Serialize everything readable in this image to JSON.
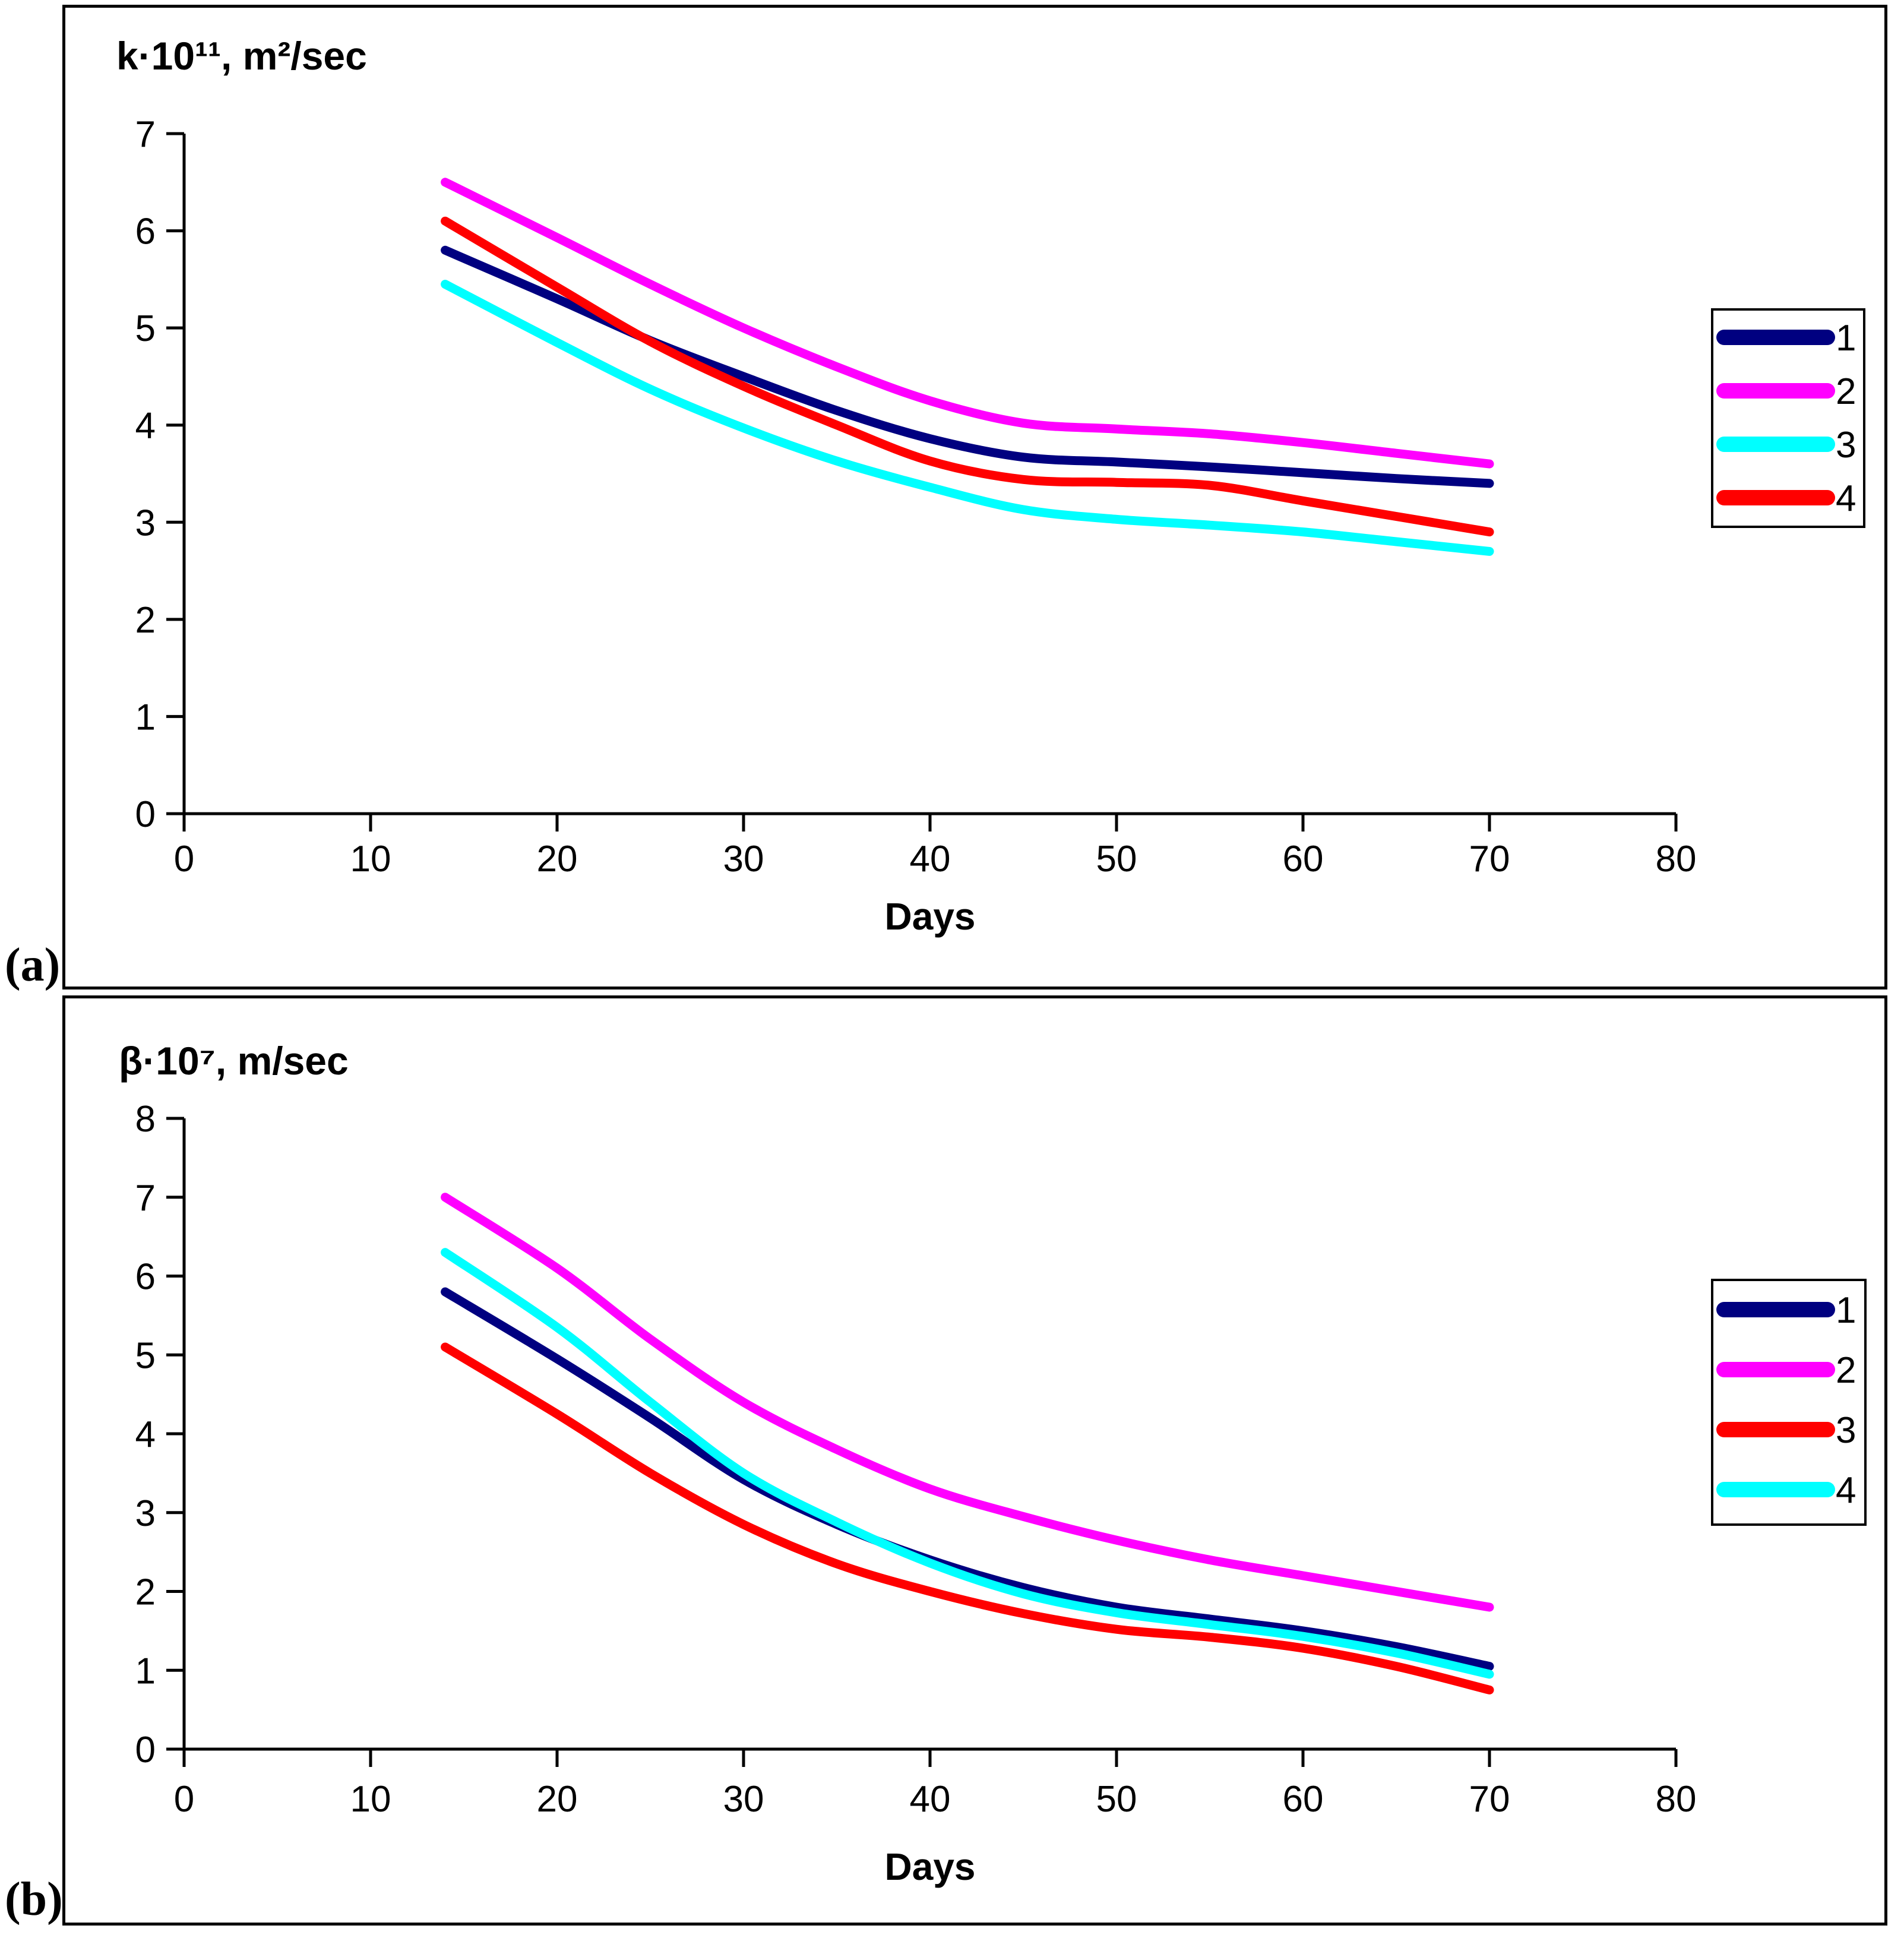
{
  "figure": {
    "panel_labels": [
      "(a)",
      "(b)"
    ],
    "background": "#FFFFFF",
    "axis_color": "#000000"
  },
  "chart_data": [
    {
      "type": "line",
      "panel": "a",
      "title": "k·10¹¹, m²/sec",
      "xlabel": "Days",
      "ylabel": "k·10¹¹, m²/sec",
      "xlim": [
        0,
        80
      ],
      "ylim": [
        0,
        7
      ],
      "x_ticks": [
        0,
        10,
        20,
        30,
        40,
        50,
        60,
        70,
        80
      ],
      "y_ticks": [
        0,
        1,
        2,
        3,
        4,
        5,
        6,
        7
      ],
      "grid": false,
      "legend_position": "right",
      "x": [
        14,
        20,
        25,
        30,
        35,
        40,
        45,
        50,
        55,
        60,
        65,
        70
      ],
      "series": [
        {
          "name": "1",
          "color": "#000080",
          "values": [
            5.8,
            5.3,
            4.87,
            4.5,
            4.15,
            3.86,
            3.67,
            3.62,
            3.57,
            3.51,
            3.45,
            3.4
          ]
        },
        {
          "name": "2",
          "color": "#FF00FF",
          "values": [
            6.5,
            5.93,
            5.45,
            5.0,
            4.6,
            4.25,
            4.02,
            3.96,
            3.91,
            3.82,
            3.71,
            3.6
          ]
        },
        {
          "name": "3",
          "color": "#00FFFF",
          "values": [
            5.45,
            4.85,
            4.37,
            3.97,
            3.63,
            3.36,
            3.13,
            3.03,
            2.97,
            2.9,
            2.8,
            2.7
          ]
        },
        {
          "name": "4",
          "color": "#FF0000",
          "values": [
            6.1,
            5.42,
            4.86,
            4.4,
            4.0,
            3.63,
            3.44,
            3.41,
            3.38,
            3.22,
            3.06,
            2.9
          ]
        }
      ],
      "legend": [
        {
          "label": "1",
          "color": "#000080"
        },
        {
          "label": "2",
          "color": "#FF00FF"
        },
        {
          "label": "3",
          "color": "#00FFFF"
        },
        {
          "label": "4",
          "color": "#FF0000"
        }
      ]
    },
    {
      "type": "line",
      "panel": "b",
      "title": "β·10⁷, m/sec",
      "xlabel": "Days",
      "ylabel": "β·10⁷, m/sec",
      "xlim": [
        0,
        80
      ],
      "ylim": [
        0,
        8
      ],
      "x_ticks": [
        0,
        10,
        20,
        30,
        40,
        50,
        60,
        70,
        80
      ],
      "y_ticks": [
        0,
        1,
        2,
        3,
        4,
        5,
        6,
        7,
        8
      ],
      "grid": false,
      "legend_position": "right",
      "x": [
        14,
        20,
        25,
        30,
        35,
        40,
        45,
        50,
        55,
        60,
        65,
        70
      ],
      "series": [
        {
          "name": "1",
          "color": "#000080",
          "values": [
            5.8,
            4.95,
            4.2,
            3.42,
            2.85,
            2.4,
            2.05,
            1.8,
            1.65,
            1.5,
            1.3,
            1.05
          ]
        },
        {
          "name": "2",
          "color": "#FF00FF",
          "values": [
            7.0,
            6.1,
            5.2,
            4.4,
            3.8,
            3.3,
            2.95,
            2.65,
            2.4,
            2.2,
            2.0,
            1.8
          ]
        },
        {
          "name": "3",
          "color": "#FF0000",
          "values": [
            5.1,
            4.25,
            3.5,
            2.85,
            2.35,
            2.0,
            1.72,
            1.52,
            1.42,
            1.28,
            1.05,
            0.75
          ]
        },
        {
          "name": "4",
          "color": "#00FFFF",
          "values": [
            6.3,
            5.35,
            4.4,
            3.5,
            2.88,
            2.36,
            1.97,
            1.73,
            1.58,
            1.43,
            1.22,
            0.95
          ]
        }
      ],
      "legend": [
        {
          "label": "1",
          "color": "#000080"
        },
        {
          "label": "2",
          "color": "#FF00FF"
        },
        {
          "label": "3",
          "color": "#FF0000"
        },
        {
          "label": "4",
          "color": "#00FFFF"
        }
      ]
    }
  ]
}
